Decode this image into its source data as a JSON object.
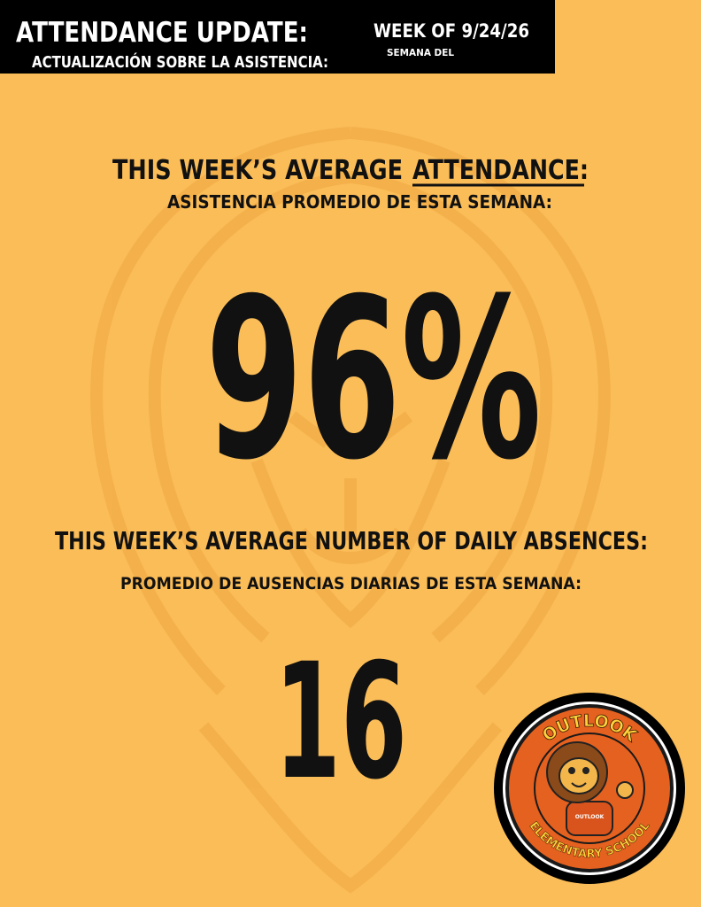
{
  "header": {
    "title": "ATTENDANCE UPDATE:",
    "title_es": "ACTUALIZACIÓN SOBRE LA ASISTENCIA:",
    "week": "WEEK OF 9/24/26",
    "week_es": "SEMANA DEL"
  },
  "attendance": {
    "heading": "THIS WEEK’S AVERAGE",
    "heading_emphasis": "ATTENDANCE:",
    "heading_es": "ASISTENCIA PROMEDIO DE ESTA SEMANA:",
    "value": "96%"
  },
  "absences": {
    "heading": "THIS WEEK’S AVERAGE NUMBER OF DAILY ABSENCES:",
    "heading_es": "PROMEDIO DE AUSENCIAS DIARIAS DE ESTA SEMANA:",
    "value": "16"
  },
  "logo": {
    "top": "OUTLOOK",
    "bottom": "ELEMENTARY SCHOOL",
    "shirt": "OUTLOOK"
  }
}
